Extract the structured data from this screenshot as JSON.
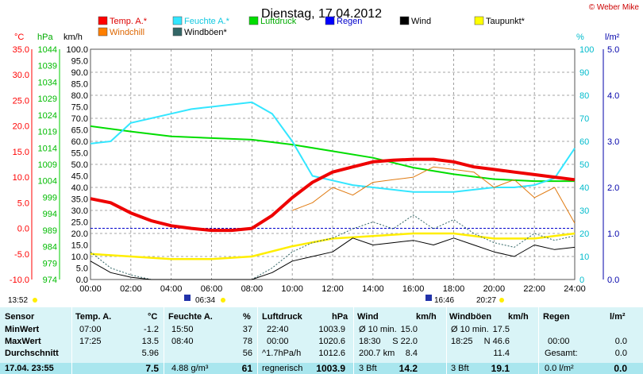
{
  "chart_data": {
    "type": "line",
    "title": "Dienstag, 17.04.2012",
    "copyright": "© Weber Mike",
    "axes": {
      "celsius": {
        "label": "°C",
        "min": -10,
        "max": 35,
        "ticks": [
          "35.0",
          "30.0",
          "25.0",
          "20.0",
          "15.0",
          "10.0",
          "5.0",
          "0.0",
          "-5.0",
          "-10.0"
        ],
        "color": "#ff0000"
      },
      "hpa": {
        "label": "hPa",
        "min": 974,
        "max": 1044,
        "ticks": [
          "1044",
          "1039",
          "1034",
          "1029",
          "1024",
          "1019",
          "1014",
          "1009",
          "1004",
          "999",
          "994",
          "989",
          "984",
          "979",
          "974"
        ],
        "color": "#00cc00"
      },
      "kmh": {
        "label": "km/h",
        "min": 0,
        "max": 100,
        "ticks": [
          "100.0",
          "95.0",
          "90.0",
          "85.0",
          "80.0",
          "75.0",
          "70.0",
          "65.0",
          "60.0",
          "55.0",
          "50.0",
          "45.0",
          "40.0",
          "35.0",
          "30.0",
          "25.0",
          "20.0",
          "15.0",
          "10.0",
          "5.0",
          "0.0"
        ],
        "color": "#000000"
      },
      "percent": {
        "label": "%",
        "min": 0,
        "max": 100,
        "ticks": [
          "100",
          "90",
          "80",
          "70",
          "60",
          "50",
          "40",
          "30",
          "20",
          "10",
          "0"
        ],
        "color": "#00cccc"
      },
      "rain": {
        "label": "l/m²",
        "min": 0,
        "max": 5,
        "ticks": [
          "5.0",
          "4.0",
          "3.0",
          "2.0",
          "1.0",
          "0.0"
        ],
        "color": "#0000aa"
      },
      "time": {
        "ticks": [
          "00:00",
          "02:00",
          "04:00",
          "06:00",
          "08:00",
          "10:00",
          "12:00",
          "14:00",
          "16:00",
          "18:00",
          "20:00",
          "22:00",
          "24:00"
        ]
      }
    },
    "legend": [
      {
        "name": "Temp. A.*",
        "color": "#ff0000"
      },
      {
        "name": "Feuchte A.*",
        "color": "#33e6ff"
      },
      {
        "name": "Luftdruck",
        "color": "#00dd00"
      },
      {
        "name": "Regen",
        "color": "#0000ff"
      },
      {
        "name": "Wind",
        "color": "#000000"
      },
      {
        "name": "Taupunkt*",
        "color": "#ffff00"
      },
      {
        "name": "Windchill",
        "color": "#ff7f00"
      },
      {
        "name": "Windböen*",
        "color": "#336666"
      }
    ],
    "sun_events": {
      "sunrise": "06:34",
      "sunset": "20:27",
      "moonrise": "16:46",
      "left_time": "13:52"
    },
    "series": [
      {
        "name": "Temp. A.*",
        "axis": "celsius",
        "x": [
          0,
          1,
          2,
          3,
          4,
          5,
          6,
          7,
          8,
          9,
          10,
          11,
          12,
          13,
          14,
          15,
          16,
          17,
          18,
          19,
          20,
          21,
          22,
          23,
          24
        ],
        "y": [
          5.8,
          5.0,
          3.0,
          1.5,
          0.5,
          0,
          -0.4,
          -0.4,
          0,
          2.5,
          6.0,
          9.0,
          11.0,
          12.0,
          13.0,
          13.3,
          13.5,
          13.5,
          13.0,
          12.0,
          11.5,
          11.0,
          10.5,
          10.0,
          9.5
        ]
      },
      {
        "name": "Feuchte A.*",
        "axis": "percent",
        "x": [
          0,
          1,
          2,
          3,
          4,
          5,
          6,
          7,
          8,
          9,
          10,
          11,
          12,
          13,
          14,
          15,
          16,
          17,
          18,
          19,
          20,
          21,
          22,
          23,
          24
        ],
        "y": [
          59,
          60,
          68,
          70,
          72,
          74,
          75,
          76,
          77,
          72,
          60,
          45,
          43,
          41,
          40,
          39,
          38,
          38,
          38,
          39,
          40,
          40,
          41,
          44,
          57
        ]
      },
      {
        "name": "Luftdruck",
        "axis": "hpa",
        "x": [
          0,
          2,
          4,
          6,
          8,
          10,
          12,
          14,
          16,
          18,
          20,
          22,
          24
        ],
        "y": [
          1020.6,
          1019.0,
          1017.5,
          1017.0,
          1016.5,
          1015.0,
          1013.0,
          1011.0,
          1008.0,
          1006.0,
          1004.5,
          1003.9,
          1003.9
        ]
      },
      {
        "name": "Taupunkt*",
        "axis": "celsius",
        "x": [
          0,
          2,
          4,
          6,
          8,
          10,
          12,
          14,
          16,
          18,
          20,
          22,
          24
        ],
        "y": [
          -5.0,
          -5.5,
          -6.0,
          -6.0,
          -5.5,
          -3.5,
          -2.0,
          -1.5,
          -1.0,
          -1.0,
          -2.0,
          -2.0,
          -1.0
        ]
      },
      {
        "name": "Windchill",
        "axis": "celsius",
        "x": [
          10,
          11,
          12,
          13,
          14,
          15,
          16,
          17,
          18,
          19,
          20,
          21,
          22,
          23,
          24
        ],
        "y": [
          3.5,
          5.0,
          8.0,
          6.5,
          9.0,
          9.5,
          10.0,
          12.0,
          11.5,
          11.0,
          8.0,
          9.5,
          6.0,
          8.0,
          1.0
        ]
      },
      {
        "name": "Wind",
        "axis": "kmh",
        "x": [
          0,
          1,
          2,
          3,
          4,
          5,
          6,
          7,
          8,
          9,
          10,
          11,
          12,
          13,
          14,
          15,
          16,
          17,
          18,
          19,
          20,
          21,
          22,
          23,
          24
        ],
        "y": [
          8,
          3,
          1,
          0,
          0,
          0,
          0,
          0,
          0,
          3,
          8,
          10,
          12,
          18,
          15,
          16,
          17,
          15,
          18,
          15,
          12,
          10,
          15,
          13,
          14
        ]
      },
      {
        "name": "Windböen*",
        "axis": "kmh",
        "x": [
          0,
          1,
          2,
          3,
          4,
          5,
          6,
          7,
          8,
          9,
          10,
          11,
          12,
          13,
          14,
          15,
          16,
          17,
          18,
          19,
          20,
          21,
          22,
          23,
          24
        ],
        "y": [
          12,
          5,
          2,
          0,
          0,
          0,
          0,
          0,
          0,
          5,
          12,
          16,
          18,
          22,
          25,
          22,
          28,
          22,
          26,
          20,
          16,
          14,
          20,
          17,
          19
        ]
      }
    ]
  },
  "stats": {
    "headers": [
      "Sensor",
      "Temp. A.",
      "°C",
      "Feuchte A.",
      "%",
      "Luftdruck",
      "hPa",
      "Wind",
      "km/h",
      "Windböen",
      "km/h",
      "Regen",
      "l/m²"
    ],
    "min": {
      "label": "MinWert",
      "t_time": "07:00",
      "t_val": "-1.2",
      "h_time": "15:50",
      "h_val": "37",
      "p_time": "22:40",
      "p_val": "1003.9",
      "w_desc": "Ø 10 min.",
      "w_val": "15.0",
      "g_desc": "Ø 10 min.",
      "g_val": "17.5",
      "r_time": "",
      "r_val": ""
    },
    "max": {
      "label": "MaxWert",
      "t_time": "17:25",
      "t_val": "13.5",
      "h_time": "08:40",
      "h_val": "78",
      "p_time": "00:00",
      "p_val": "1020.6",
      "w_time": "18:30",
      "w_desc": "S 22.0",
      "g_time": "18:25",
      "g_desc": "N 46.6",
      "r_time": "00:00",
      "r_val": "0.0"
    },
    "avg": {
      "label": "Durchschnitt",
      "t_val": "5.96",
      "h_val": "56",
      "p_desc": "^1.7hPa/h",
      "p_val": "1012.6",
      "w_desc": "200.7 km",
      "w_val": "8.4",
      "g_val": "11.4",
      "r_desc": "Gesamt:",
      "r_val": "0.0"
    },
    "now": {
      "label": "17.04. 23:55",
      "t_val": "7.5",
      "h_desc": "4.88 g/m³",
      "h_val": "61",
      "p_desc": "regnerisch",
      "p_val": "1003.9",
      "w_desc": "3 Bft",
      "w_val": "14.2",
      "g_desc": "3 Bft",
      "g_val": "19.1",
      "r_desc": "0.0 l/m²",
      "r_val": "0.0"
    }
  }
}
